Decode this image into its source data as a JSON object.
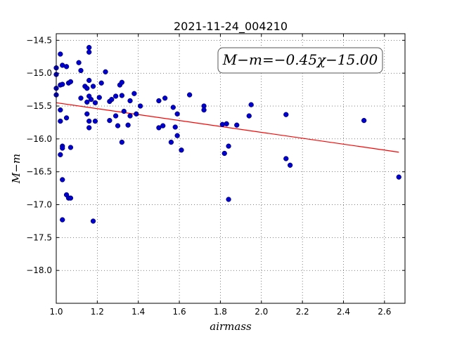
{
  "chart_data": {
    "type": "scatter",
    "title": "2021-11-24_004210",
    "xlabel": "airmass",
    "ylabel": "M−m",
    "annotation": "M−m=−0.45χ−15.00",
    "xlim": [
      1.0,
      2.7
    ],
    "ylim": [
      -18.5,
      -14.4
    ],
    "y_inverted": true,
    "grid": true,
    "xticks": [
      1.0,
      1.2,
      1.4,
      1.6,
      1.8,
      2.0,
      2.2,
      2.4,
      2.6
    ],
    "xtick_labels": [
      "1.0",
      "1.2",
      "1.4",
      "1.6",
      "1.8",
      "2.0",
      "2.2",
      "2.4",
      "2.6"
    ],
    "yticks": [
      -14.5,
      -15.0,
      -15.5,
      -16.0,
      -16.5,
      -17.0,
      -17.5,
      -18.0
    ],
    "ytick_labels": [
      "−14.5",
      "−15.0",
      "−15.5",
      "−16.0",
      "−16.5",
      "−17.0",
      "−17.5",
      "−18.0"
    ],
    "fit": {
      "slope": -0.45,
      "intercept": -15.0,
      "x_range": [
        1.0,
        2.67
      ],
      "color": "#ff0000"
    },
    "point_color": "#0000cc",
    "points": [
      [
        1.0,
        -14.92
      ],
      [
        1.0,
        -15.02
      ],
      [
        1.0,
        -15.23
      ],
      [
        1.0,
        -15.33
      ],
      [
        1.02,
        -14.71
      ],
      [
        1.02,
        -15.18
      ],
      [
        1.03,
        -15.17
      ],
      [
        1.03,
        -14.88
      ],
      [
        1.05,
        -14.9
      ],
      [
        1.06,
        -15.15
      ],
      [
        1.07,
        -15.13
      ],
      [
        1.02,
        -15.56
      ],
      [
        1.02,
        -15.73
      ],
      [
        1.05,
        -15.68
      ],
      [
        1.03,
        -16.11
      ],
      [
        1.03,
        -16.14
      ],
      [
        1.02,
        -16.24
      ],
      [
        1.07,
        -16.13
      ],
      [
        1.03,
        -16.62
      ],
      [
        1.05,
        -16.85
      ],
      [
        1.06,
        -16.9
      ],
      [
        1.07,
        -16.9
      ],
      [
        1.03,
        -17.23
      ],
      [
        1.11,
        -14.84
      ],
      [
        1.12,
        -14.96
      ],
      [
        1.12,
        -15.38
      ],
      [
        1.14,
        -15.2
      ],
      [
        1.15,
        -15.23
      ],
      [
        1.15,
        -15.44
      ],
      [
        1.16,
        -14.61
      ],
      [
        1.16,
        -14.68
      ],
      [
        1.16,
        -15.11
      ],
      [
        1.16,
        -15.35
      ],
      [
        1.17,
        -15.4
      ],
      [
        1.15,
        -15.62
      ],
      [
        1.16,
        -15.73
      ],
      [
        1.16,
        -15.83
      ],
      [
        1.18,
        -15.2
      ],
      [
        1.19,
        -15.45
      ],
      [
        1.19,
        -15.73
      ],
      [
        1.18,
        -17.25
      ],
      [
        1.21,
        -15.37
      ],
      [
        1.22,
        -15.15
      ],
      [
        1.24,
        -14.98
      ],
      [
        1.26,
        -15.43
      ],
      [
        1.27,
        -15.4
      ],
      [
        1.26,
        -15.72
      ],
      [
        1.29,
        -15.35
      ],
      [
        1.29,
        -15.65
      ],
      [
        1.3,
        -15.8
      ],
      [
        1.31,
        -15.18
      ],
      [
        1.32,
        -15.14
      ],
      [
        1.32,
        -15.34
      ],
      [
        1.33,
        -15.58
      ],
      [
        1.35,
        -15.79
      ],
      [
        1.36,
        -15.42
      ],
      [
        1.36,
        -15.65
      ],
      [
        1.38,
        -15.31
      ],
      [
        1.39,
        -15.62
      ],
      [
        1.32,
        -16.05
      ],
      [
        1.41,
        -15.5
      ],
      [
        1.5,
        -15.42
      ],
      [
        1.5,
        -15.83
      ],
      [
        1.52,
        -15.8
      ],
      [
        1.53,
        -15.38
      ],
      [
        1.56,
        -16.05
      ],
      [
        1.57,
        -15.52
      ],
      [
        1.58,
        -15.82
      ],
      [
        1.59,
        -15.95
      ],
      [
        1.59,
        -15.62
      ],
      [
        1.61,
        -16.17
      ],
      [
        1.65,
        -15.33
      ],
      [
        1.72,
        -15.5
      ],
      [
        1.72,
        -15.56
      ],
      [
        1.81,
        -15.78
      ],
      [
        1.82,
        -16.22
      ],
      [
        1.83,
        -15.77
      ],
      [
        1.84,
        -16.11
      ],
      [
        1.84,
        -16.92
      ],
      [
        1.88,
        -15.79
      ],
      [
        1.94,
        -15.65
      ],
      [
        1.95,
        -15.48
      ],
      [
        2.12,
        -15.63
      ],
      [
        2.12,
        -16.3
      ],
      [
        2.14,
        -16.4
      ],
      [
        2.5,
        -15.72
      ],
      [
        2.67,
        -16.58
      ]
    ]
  }
}
